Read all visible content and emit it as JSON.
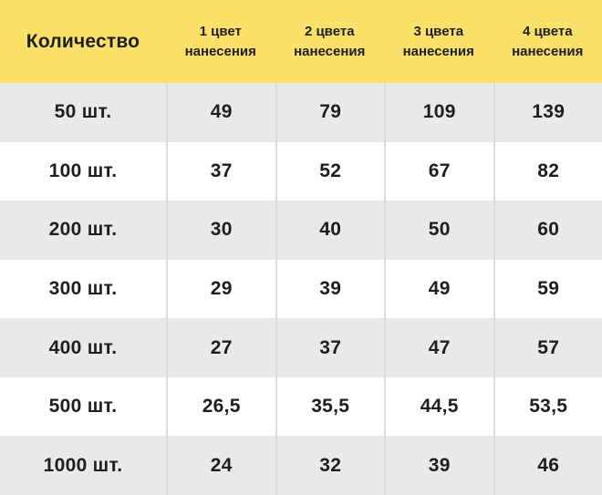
{
  "table": {
    "header": {
      "quantity_label": "Количество",
      "columns": [
        {
          "line1": "1 цвет",
          "line2": "нанесения"
        },
        {
          "line1": "2 цвета",
          "line2": "нанесения"
        },
        {
          "line1": "3 цвета",
          "line2": "нанесения"
        },
        {
          "line1": "4 цвета",
          "line2": "нанесения"
        }
      ]
    },
    "rows": [
      {
        "label": "50 шт.",
        "values": [
          "49",
          "79",
          "109",
          "139"
        ]
      },
      {
        "label": "100 шт.",
        "values": [
          "37",
          "52",
          "67",
          "82"
        ]
      },
      {
        "label": "200 шт.",
        "values": [
          "30",
          "40",
          "50",
          "60"
        ]
      },
      {
        "label": "300 шт.",
        "values": [
          "29",
          "39",
          "49",
          "59"
        ]
      },
      {
        "label": "400 шт.",
        "values": [
          "27",
          "37",
          "47",
          "57"
        ]
      },
      {
        "label": "500 шт.",
        "values": [
          "26,5",
          "35,5",
          "44,5",
          "53,5"
        ]
      },
      {
        "label": "1000 шт.",
        "values": [
          "24",
          "32",
          "39",
          "46"
        ]
      }
    ]
  },
  "colors": {
    "header_bg": "#FBE06A",
    "row_alt_bg": "#E9E9EA",
    "row_bg": "#FFFFFF",
    "divider": "#DCDCDE",
    "text": "#1E1E1E"
  },
  "chart_data": {
    "type": "table",
    "title": "",
    "columns": [
      "Количество",
      "1 цвет нанесения",
      "2 цвета нанесения",
      "3 цвета нанесения",
      "4 цвета нанесения"
    ],
    "rows": [
      [
        "50 шт.",
        49,
        79,
        109,
        139
      ],
      [
        "100 шт.",
        37,
        52,
        67,
        82
      ],
      [
        "200 шт.",
        30,
        40,
        50,
        60
      ],
      [
        "300 шт.",
        29,
        39,
        49,
        59
      ],
      [
        "400 шт.",
        27,
        37,
        47,
        57
      ],
      [
        "500 шт.",
        26.5,
        35.5,
        44.5,
        53.5
      ],
      [
        "1000 шт.",
        24,
        32,
        39,
        46
      ]
    ]
  }
}
